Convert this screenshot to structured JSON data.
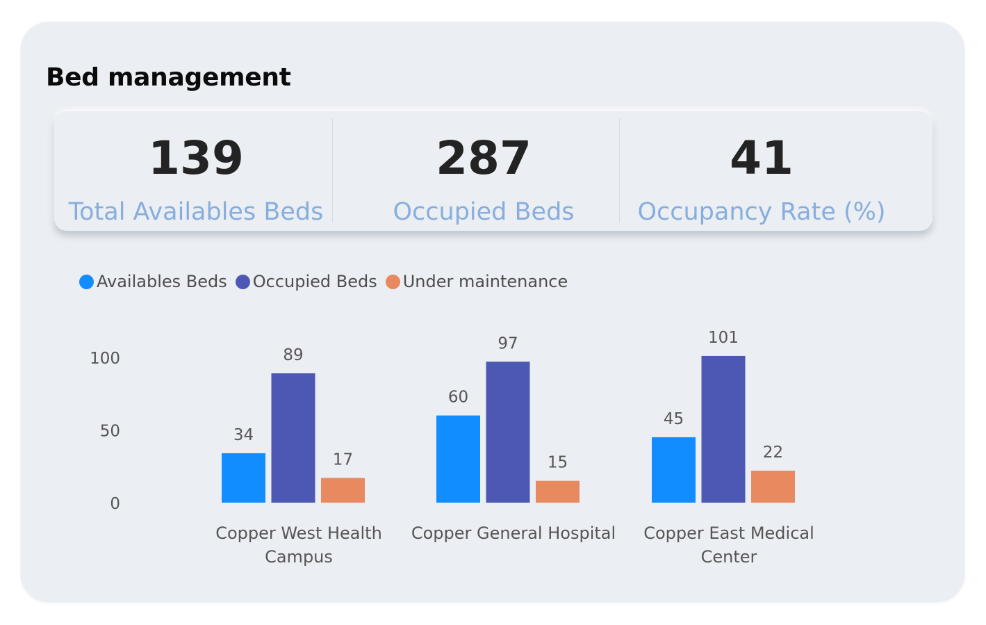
{
  "header": {
    "title": "Bed management"
  },
  "kpis": [
    {
      "value": "139",
      "label": "Total Availables Beds"
    },
    {
      "value": "287",
      "label": "Occupied Beds"
    },
    {
      "value": "41",
      "label": "Occupancy Rate (%)"
    }
  ],
  "colors": {
    "available": "#118dff",
    "occupied": "#4c58b4",
    "maintenance": "#e8895f"
  },
  "chart_data": {
    "type": "bar",
    "categories": [
      "Copper West Health Campus",
      "Copper General Hospital",
      "Copper East Medical Center"
    ],
    "category_lines": [
      [
        "Copper West Health",
        "Campus"
      ],
      [
        "Copper General Hospital"
      ],
      [
        "Copper East Medical",
        "Center"
      ]
    ],
    "series": [
      {
        "name": "Availables Beds",
        "values": [
          34,
          60,
          45
        ],
        "color": "#118dff"
      },
      {
        "name": "Occupied Beds",
        "values": [
          89,
          97,
          101
        ],
        "color": "#4c58b4"
      },
      {
        "name": "Under maintenance",
        "values": [
          17,
          15,
          22
        ],
        "color": "#e8895f"
      }
    ],
    "yticks": [
      0,
      50,
      100
    ],
    "ylim": [
      0,
      100
    ],
    "legend_position": "top-left",
    "grid": false,
    "data_labels": true
  }
}
